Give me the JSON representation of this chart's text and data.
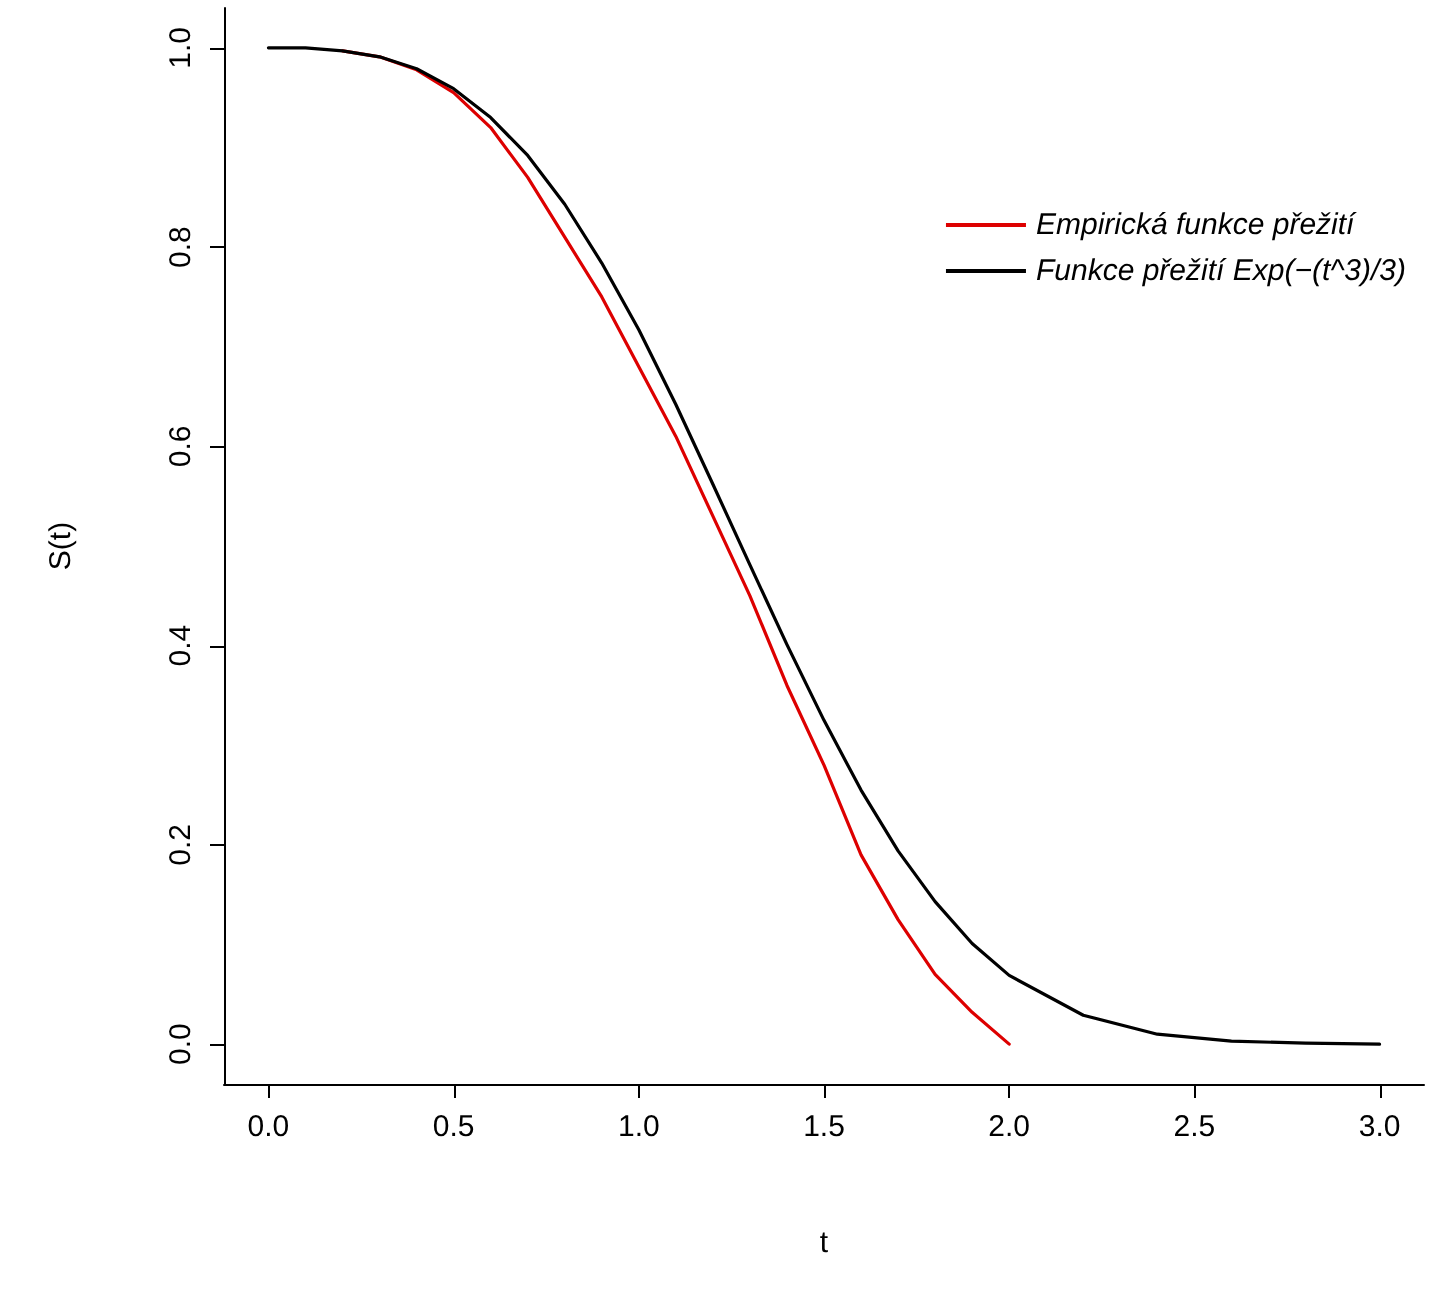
{
  "chart_data": {
    "type": "line",
    "xlabel": "t",
    "ylabel": "S(t)",
    "xlim": [
      -0.12,
      3.12
    ],
    "ylim": [
      -0.04,
      1.04
    ],
    "xticks": [
      {
        "value": 0,
        "label": "0.0"
      },
      {
        "value": 0.5,
        "label": "0.5"
      },
      {
        "value": 1,
        "label": "1.0"
      },
      {
        "value": 1.5,
        "label": "1.5"
      },
      {
        "value": 2,
        "label": "2.0"
      },
      {
        "value": 2.5,
        "label": "2.5"
      },
      {
        "value": 3,
        "label": "3.0"
      }
    ],
    "yticks": [
      {
        "value": 0,
        "label": "0.0"
      },
      {
        "value": 0.2,
        "label": "0.2"
      },
      {
        "value": 0.4,
        "label": "0.4"
      },
      {
        "value": 0.6,
        "label": "0.6"
      },
      {
        "value": 0.8,
        "label": "0.8"
      },
      {
        "value": 1,
        "label": "1.0"
      }
    ],
    "grid": false,
    "legend": "top right",
    "marker": "none",
    "line_style": "solid",
    "series": [
      {
        "name": "Empirická funkce přežití",
        "color": "#dd0000",
        "x": [
          0.2,
          0.3,
          0.4,
          0.5,
          0.6,
          0.7,
          0.8,
          0.9,
          1.0,
          1.1,
          1.2,
          1.3,
          1.4,
          1.5,
          1.6,
          1.7,
          1.8,
          1.9,
          2.0
        ],
        "values": [
          0.997,
          0.991,
          0.978,
          0.955,
          0.92,
          0.87,
          0.81,
          0.75,
          0.68,
          0.61,
          0.53,
          0.45,
          0.36,
          0.28,
          0.19,
          0.125,
          0.07,
          0.032,
          0
        ]
      },
      {
        "name": "Funkce přežití Exp(−(t^3)/3)",
        "color": "#000000",
        "x": [
          0,
          0.1,
          0.2,
          0.3,
          0.4,
          0.5,
          0.6,
          0.7,
          0.8,
          0.9,
          1.0,
          1.1,
          1.2,
          1.3,
          1.4,
          1.5,
          1.6,
          1.7,
          1.8,
          1.9,
          2.0,
          2.2,
          2.4,
          2.6,
          2.8,
          3.0
        ],
        "values": [
          1,
          1,
          0.997,
          0.991,
          0.979,
          0.959,
          0.93,
          0.892,
          0.843,
          0.784,
          0.717,
          0.642,
          0.562,
          0.481,
          0.401,
          0.325,
          0.255,
          0.194,
          0.143,
          0.101,
          0.069,
          0.029,
          0.01,
          0.003,
          0.001,
          0
        ]
      }
    ]
  }
}
